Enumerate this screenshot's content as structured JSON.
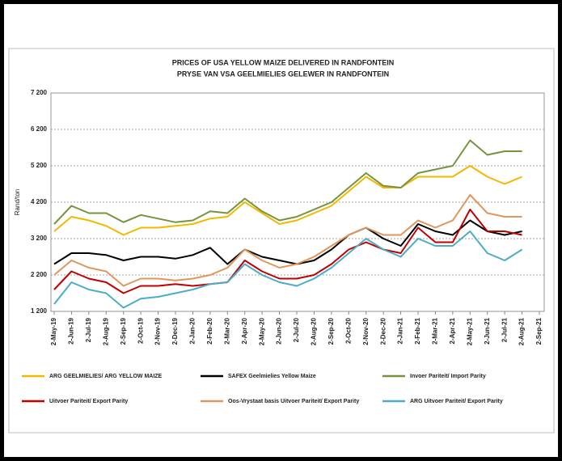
{
  "chart_data": {
    "type": "line",
    "title": "PRICES OF USA YELLOW MAIZE DELIVERED IN RANDFONTEIN",
    "subtitle": "PRYSE VAN VSA GEELMIELIES GELEWER IN RANDFONTEIN",
    "y_label": "Rand/ton",
    "categories": [
      "2-May-19",
      "2-Jun-19",
      "2-Jul-19",
      "2-Aug-19",
      "2-Sep-19",
      "2-Oct-19",
      "2-Nov-19",
      "2-Dec-19",
      "2-Jan-20",
      "2-Feb-20",
      "2-Mar-20",
      "2-Apr-20",
      "2-May-20",
      "2-Jun-20",
      "2-Jul-20",
      "2-Aug-20",
      "2-Sep-20",
      "2-Oct-20",
      "2-Nov-20",
      "2-Dec-20",
      "2-Jan-21",
      "2-Feb-21",
      "2-Mar-21",
      "2-Apr-21",
      "2-May-21",
      "2-Jun-21",
      "2-Jul-21",
      "2-Aug-21",
      "2-Sep-21"
    ],
    "ylim": [
      1200,
      7200
    ],
    "yticks": [
      {
        "value": 1200,
        "label": "1 200"
      },
      {
        "value": 2200,
        "label": "2 200"
      },
      {
        "value": 3200,
        "label": "3 200"
      },
      {
        "value": 4200,
        "label": "4 200"
      },
      {
        "value": 5200,
        "label": "5 200"
      },
      {
        "value": 6200,
        "label": "6 200"
      },
      {
        "value": 7200,
        "label": "7 200"
      }
    ],
    "grid": true,
    "legend": "bottom",
    "series": [
      {
        "name": "ARG GEELMIELIES/ ARG YELLOW MAIZE",
        "color": "#f2b800",
        "values": [
          3400,
          3800,
          3700,
          3550,
          3300,
          3500,
          3500,
          3550,
          3600,
          3750,
          3800,
          4200,
          3900,
          3600,
          3700,
          3900,
          4100,
          4500,
          4900,
          4600,
          4600,
          4900,
          4900,
          4900,
          5200,
          4900,
          4700,
          4900,
          null
        ]
      },
      {
        "name": "SAFEX  Geelmielies  Yellow Maize",
        "color": "#000000",
        "values": [
          2500,
          2800,
          2800,
          2750,
          2600,
          2700,
          2700,
          2650,
          2750,
          2950,
          2500,
          2900,
          2700,
          2600,
          2500,
          2600,
          2900,
          3300,
          3500,
          3200,
          3000,
          3600,
          3400,
          3300,
          3700,
          3400,
          3300,
          3400,
          null
        ]
      },
      {
        "name": "Invoer  Pariteit/  Import  Parity",
        "color": "#77933c",
        "values": [
          3600,
          4100,
          3900,
          3900,
          3650,
          3850,
          3750,
          3650,
          3700,
          3950,
          3900,
          4300,
          3950,
          3700,
          3800,
          4000,
          4200,
          4600,
          5000,
          4650,
          4600,
          5000,
          5100,
          5200,
          5900,
          5500,
          5600,
          5600,
          null
        ]
      },
      {
        "name": "Uitvoer  Pariteit/  Export  Parity",
        "color": "#c00000",
        "values": [
          1800,
          2300,
          2100,
          2000,
          1700,
          1900,
          1900,
          1950,
          1900,
          1950,
          2000,
          2600,
          2300,
          2100,
          2100,
          2200,
          2500,
          2900,
          3100,
          2900,
          2800,
          3500,
          3100,
          3100,
          4000,
          3400,
          3400,
          3300,
          null
        ]
      },
      {
        "name": "Oos-Vrystaat basis  Uitvoer Pariteit/  Export  Parity",
        "color": "#e0955a",
        "values": [
          2200,
          2600,
          2400,
          2300,
          1900,
          2100,
          2100,
          2050,
          2100,
          2200,
          2400,
          2900,
          2600,
          2400,
          2500,
          2700,
          3000,
          3300,
          3500,
          3300,
          3300,
          3700,
          3500,
          3700,
          4400,
          3900,
          3800,
          3800,
          null
        ]
      },
      {
        "name": "ARG Uitvoer  Pariteit/  Export  Parity",
        "color": "#4bacc6",
        "values": [
          1400,
          2000,
          1800,
          1700,
          1300,
          1550,
          1600,
          1700,
          1800,
          1950,
          2000,
          2500,
          2200,
          2000,
          1900,
          2100,
          2400,
          2800,
          3200,
          2900,
          2700,
          3200,
          3000,
          3000,
          3400,
          2800,
          2600,
          2900,
          null
        ]
      }
    ]
  }
}
